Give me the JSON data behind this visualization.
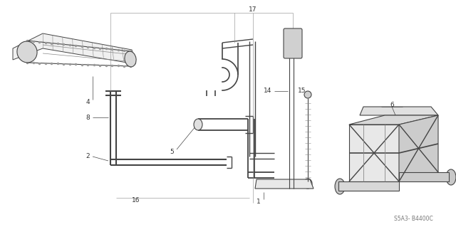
{
  "bg_color": "#ffffff",
  "line_color": "#444444",
  "fig_width": 6.4,
  "fig_height": 3.19,
  "dpi": 100,
  "diagram_code": "S5A3- B4400C"
}
